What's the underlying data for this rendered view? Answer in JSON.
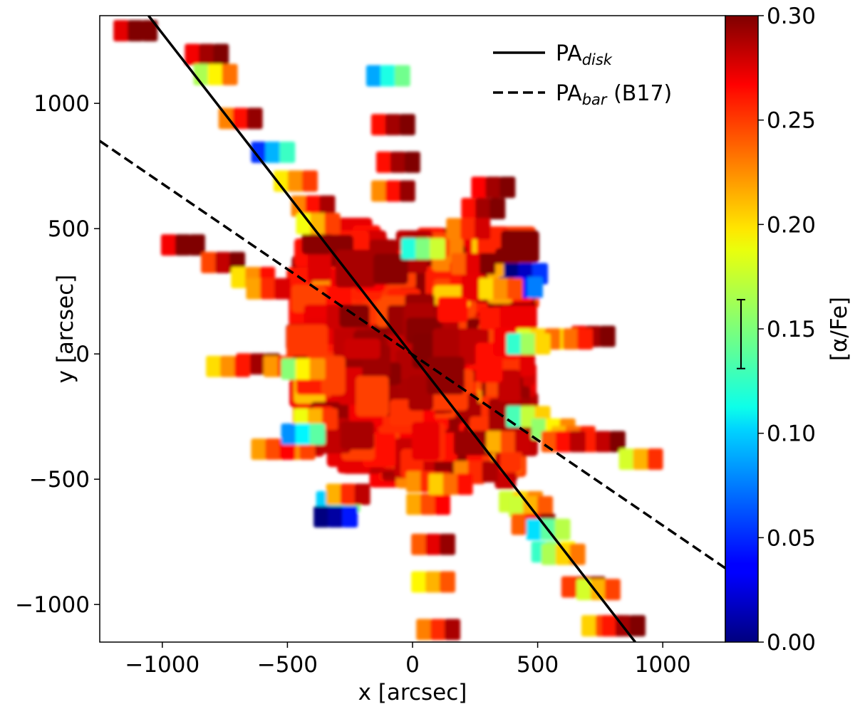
{
  "chart_data": {
    "type": "scatter",
    "title": "",
    "xlabel": "x [arcsec]",
    "ylabel": "y [arcsec]",
    "xlim": [
      -1250,
      1250
    ],
    "ylim": [
      -1150,
      1350
    ],
    "xticks": [
      -1000,
      -500,
      0,
      500,
      1000
    ],
    "yticks": [
      -1000,
      -500,
      0,
      500,
      1000
    ],
    "xtick_labels": [
      "−1000",
      "−500",
      "0",
      "500",
      "1000"
    ],
    "ytick_labels": [
      "−1000",
      "−500",
      "0",
      "500",
      "1000"
    ],
    "grid": false,
    "colorbar": {
      "label": "[α/Fe]",
      "range": [
        0.0,
        0.3
      ],
      "colormap": "jet",
      "ticks": [
        0.0,
        0.05,
        0.1,
        0.15,
        0.2,
        0.25,
        0.3
      ],
      "tick_labels": [
        "0.00",
        "0.05",
        "0.10",
        "0.15",
        "0.20",
        "0.25",
        "0.30"
      ],
      "errorbar": {
        "center": 0.147,
        "low": 0.131,
        "high": 0.164
      }
    },
    "legend": {
      "position": "top-right",
      "entries": [
        {
          "main": "PA",
          "sub": "disk",
          "rest": "",
          "style": "solid"
        },
        {
          "main": "PA",
          "sub": "bar",
          "rest": " (B17)",
          "style": "dashed"
        }
      ]
    },
    "lines": [
      {
        "name": "PA disk",
        "style": "solid",
        "x": [
          -1055,
          890
        ],
        "y": [
          1350,
          -1150
        ]
      },
      {
        "name": "PA bar (B17)",
        "style": "dashed",
        "x": [
          -1250,
          1250
        ],
        "y": [
          850,
          -855
        ]
      }
    ],
    "central_region": {
      "description": "dense central tile mosaic",
      "x_range": [
        -450,
        450
      ],
      "y_range": [
        -500,
        500
      ],
      "typical_value": 0.27
    },
    "points": [
      [
        -1110,
        1290,
        0.3
      ],
      [
        -825,
        1195,
        0.29
      ],
      [
        -790,
        1115,
        0.19
      ],
      [
        -690,
        940,
        0.26
      ],
      [
        -560,
        805,
        0.09
      ],
      [
        -470,
        690,
        0.22
      ],
      [
        -400,
        590,
        0.26
      ],
      [
        -380,
        520,
        0.21
      ],
      [
        -920,
        435,
        0.3
      ],
      [
        -760,
        365,
        0.28
      ],
      [
        -640,
        305,
        0.22
      ],
      [
        -580,
        260,
        0.25
      ],
      [
        -740,
        -50,
        0.22
      ],
      [
        -620,
        -40,
        0.29
      ],
      [
        -510,
        -50,
        0.25
      ],
      [
        -440,
        -60,
        0.19
      ],
      [
        -390,
        -260,
        0.21
      ],
      [
        -480,
        -380,
        0.22
      ],
      [
        -560,
        -380,
        0.24
      ],
      [
        -440,
        -320,
        0.11
      ],
      [
        -300,
        -590,
        0.12
      ],
      [
        -310,
        -650,
        0.01
      ],
      [
        -260,
        -560,
        0.25
      ],
      [
        -100,
        1110,
        0.12
      ],
      [
        -80,
        915,
        0.29
      ],
      [
        -60,
        765,
        0.29
      ],
      [
        -80,
        650,
        0.26
      ],
      [
        40,
        420,
        0.15
      ],
      [
        60,
        -510,
        0.25
      ],
      [
        60,
        -600,
        0.24
      ],
      [
        80,
        -760,
        0.27
      ],
      [
        80,
        -910,
        0.21
      ],
      [
        100,
        -1100,
        0.25
      ],
      [
        320,
        665,
        0.29
      ],
      [
        280,
        580,
        0.29
      ],
      [
        220,
        500,
        0.25
      ],
      [
        240,
        360,
        0.27
      ],
      [
        450,
        320,
        0.02
      ],
      [
        430,
        265,
        0.04
      ],
      [
        350,
        260,
        0.22
      ],
      [
        720,
        70,
        0.29
      ],
      [
        630,
        60,
        0.23
      ],
      [
        500,
        60,
        0.2
      ],
      [
        460,
        40,
        0.16
      ],
      [
        460,
        -250,
        0.17
      ],
      [
        560,
        -300,
        0.19
      ],
      [
        640,
        -330,
        0.23
      ],
      [
        760,
        -350,
        0.28
      ],
      [
        910,
        -420,
        0.21
      ],
      [
        430,
        -590,
        0.2
      ],
      [
        470,
        -610,
        0.21
      ],
      [
        480,
        -680,
        0.26
      ],
      [
        540,
        -700,
        0.14
      ],
      [
        560,
        -790,
        0.15
      ],
      [
        600,
        -800,
        0.2
      ],
      [
        680,
        -930,
        0.27
      ],
      [
        740,
        -940,
        0.21
      ],
      [
        760,
        -1085,
        0.24
      ],
      [
        840,
        -1085,
        0.29
      ],
      [
        600,
        -350,
        0.26
      ],
      [
        380,
        -350,
        0.24
      ],
      [
        250,
        -470,
        0.25
      ],
      [
        150,
        -520,
        0.23
      ]
    ]
  }
}
